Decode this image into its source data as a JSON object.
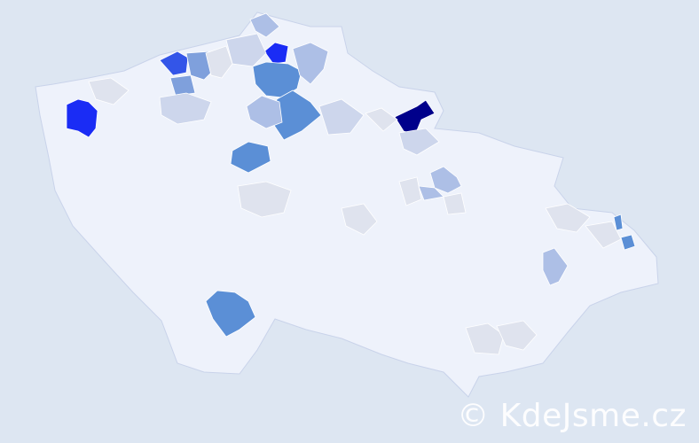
{
  "map": {
    "palette": {
      "background": "#dde6f2",
      "base": "#eef2fb",
      "border": "#c9d3ea",
      "level0": "#dfe3ee",
      "level1": "#cdd6ec",
      "level2": "#adbfe6",
      "level3": "#7fa0dc",
      "level4": "#5b8fd6",
      "level5": "#3355e8",
      "level6": "#1a2cf5",
      "level7": "#00008b"
    }
  },
  "watermark": "© KdeJsme.cz"
}
